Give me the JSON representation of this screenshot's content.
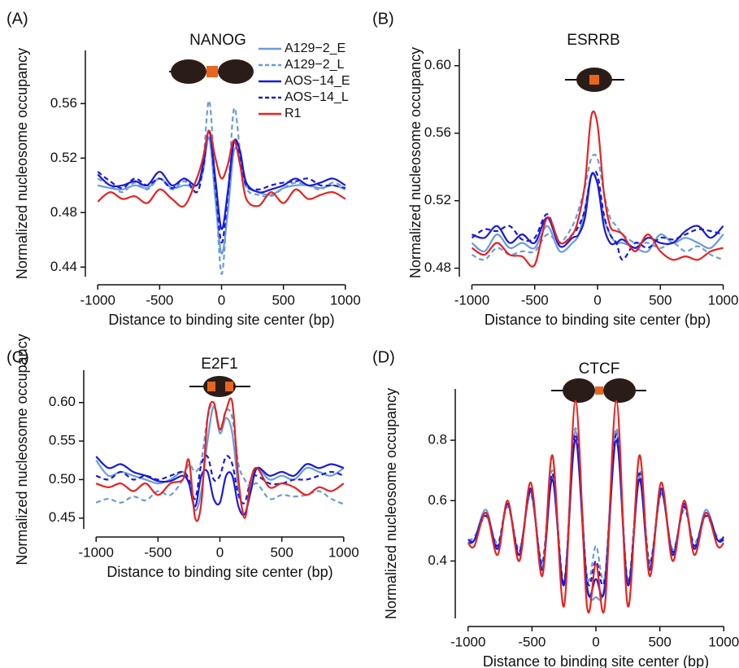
{
  "chart_data": [
    {
      "type": "line",
      "label": "(A)",
      "title": "NANOG",
      "xlabel": "Distance to binding site center (bp)",
      "ylabel": "Normalized nucleosome occupancy",
      "legend": true,
      "x": [
        -1000,
        -900,
        -800,
        -700,
        -600,
        -500,
        -400,
        -300,
        -200,
        -150,
        -100,
        -50,
        0,
        50,
        100,
        150,
        200,
        300,
        400,
        500,
        600,
        700,
        800,
        900,
        1000
      ],
      "xlim": [
        -1100,
        1100
      ],
      "xticks": [
        -1000,
        -500,
        0,
        500,
        1000
      ],
      "ylim": [
        0.433,
        0.599
      ],
      "yticks": [
        0.44,
        0.48,
        0.52,
        0.56
      ],
      "series": [
        {
          "name": "A129−2_E",
          "color": "#6a9be0",
          "dashed": false,
          "values": [
            0.5,
            0.498,
            0.497,
            0.5,
            0.498,
            0.505,
            0.498,
            0.5,
            0.5,
            0.51,
            0.535,
            0.49,
            0.45,
            0.48,
            0.525,
            0.52,
            0.5,
            0.495,
            0.493,
            0.498,
            0.5,
            0.5,
            0.498,
            0.5,
            0.497
          ]
        },
        {
          "name": "A129−2_L",
          "color": "#6a9be0",
          "dashed": true,
          "values": [
            0.505,
            0.5,
            0.495,
            0.502,
            0.497,
            0.505,
            0.497,
            0.503,
            0.495,
            0.515,
            0.562,
            0.5,
            0.435,
            0.49,
            0.556,
            0.525,
            0.498,
            0.493,
            0.492,
            0.498,
            0.502,
            0.5,
            0.497,
            0.502,
            0.498
          ]
        },
        {
          "name": "AOS−14_E",
          "color": "#1a1adb",
          "dashed": false,
          "values": [
            0.508,
            0.5,
            0.5,
            0.503,
            0.5,
            0.51,
            0.5,
            0.505,
            0.5,
            0.515,
            0.54,
            0.505,
            0.468,
            0.495,
            0.532,
            0.525,
            0.502,
            0.495,
            0.497,
            0.5,
            0.505,
            0.5,
            0.502,
            0.505,
            0.5
          ]
        },
        {
          "name": "AOS−14_L",
          "color": "#1a1adb",
          "dashed": true,
          "values": [
            0.51,
            0.503,
            0.498,
            0.505,
            0.5,
            0.505,
            0.498,
            0.505,
            0.495,
            0.512,
            0.54,
            0.5,
            0.458,
            0.492,
            0.532,
            0.52,
            0.5,
            0.497,
            0.5,
            0.502,
            0.503,
            0.505,
            0.5,
            0.5,
            0.498
          ]
        },
        {
          "name": "R1",
          "color": "#e8231f",
          "dashed": false,
          "values": [
            0.488,
            0.495,
            0.49,
            0.492,
            0.487,
            0.497,
            0.49,
            0.485,
            0.505,
            0.52,
            0.54,
            0.52,
            0.505,
            0.515,
            0.533,
            0.515,
            0.49,
            0.485,
            0.495,
            0.487,
            0.497,
            0.49,
            0.493,
            0.495,
            0.49
          ]
        }
      ]
    },
    {
      "type": "line",
      "label": "(B)",
      "title": "ESRRB",
      "xlabel": "Distance to binding site center (bp)",
      "ylabel": "Normalized nucleosome occupancy",
      "x": [
        -1000,
        -900,
        -800,
        -700,
        -600,
        -500,
        -400,
        -300,
        -200,
        -150,
        -100,
        -50,
        0,
        50,
        100,
        150,
        200,
        300,
        400,
        500,
        600,
        700,
        800,
        900,
        1000
      ],
      "xlim": [
        -1100,
        1100
      ],
      "xticks": [
        -1000,
        -500,
        0,
        500,
        1000
      ],
      "ylim": [
        0.475,
        0.61
      ],
      "yticks": [
        0.48,
        0.52,
        0.56,
        {
          "value": 0.6,
          "label": "0.60"
        }
      ],
      "series": [
        {
          "color": "#6a9be0",
          "dashed": false,
          "values": [
            0.495,
            0.49,
            0.5,
            0.492,
            0.495,
            0.492,
            0.505,
            0.49,
            0.495,
            0.5,
            0.515,
            0.535,
            0.53,
            0.51,
            0.5,
            0.495,
            0.495,
            0.492,
            0.49,
            0.5,
            0.495,
            0.498,
            0.495,
            0.492,
            0.5
          ]
        },
        {
          "color": "#6a9be0",
          "dashed": true,
          "values": [
            0.488,
            0.485,
            0.492,
            0.488,
            0.49,
            0.49,
            0.5,
            0.495,
            0.505,
            0.515,
            0.528,
            0.545,
            0.545,
            0.525,
            0.51,
            0.505,
            0.5,
            0.495,
            0.495,
            0.492,
            0.495,
            0.49,
            0.493,
            0.488,
            0.485
          ]
        },
        {
          "color": "#1a1adb",
          "dashed": false,
          "values": [
            0.5,
            0.498,
            0.505,
            0.495,
            0.5,
            0.495,
            0.51,
            0.493,
            0.498,
            0.5,
            0.51,
            0.535,
            0.53,
            0.505,
            0.495,
            0.495,
            0.497,
            0.492,
            0.498,
            0.495,
            0.495,
            0.502,
            0.505,
            0.498,
            0.505
          ]
        },
        {
          "color": "#1a1adb",
          "dashed": true,
          "values": [
            0.498,
            0.503,
            0.502,
            0.505,
            0.497,
            0.498,
            0.512,
            0.495,
            0.5,
            0.505,
            0.515,
            0.535,
            0.535,
            0.512,
            0.5,
            0.495,
            0.485,
            0.495,
            0.492,
            0.498,
            0.497,
            0.5,
            0.503,
            0.502,
            0.5
          ]
        },
        {
          "color": "#e8231f",
          "dashed": false,
          "values": [
            0.492,
            0.488,
            0.495,
            0.488,
            0.487,
            0.482,
            0.51,
            0.495,
            0.5,
            0.51,
            0.53,
            0.57,
            0.565,
            0.525,
            0.505,
            0.502,
            0.5,
            0.49,
            0.5,
            0.49,
            0.485,
            0.487,
            0.485,
            0.49,
            0.492
          ]
        }
      ]
    },
    {
      "type": "line",
      "label": "(C)",
      "title": "E2F1",
      "xlabel": "Distance to binding site center (bp)",
      "ylabel": "Normalized nucleosome occupancy",
      "x": [
        -1000,
        -900,
        -800,
        -700,
        -600,
        -500,
        -400,
        -300,
        -250,
        -200,
        -150,
        -100,
        -50,
        0,
        50,
        100,
        150,
        200,
        250,
        300,
        400,
        500,
        600,
        700,
        800,
        900,
        1000
      ],
      "xlim": [
        -1100,
        1100
      ],
      "xticks": [
        -1000,
        -500,
        0,
        500,
        1000
      ],
      "ylim": [
        0.436,
        0.642
      ],
      "yticks": [
        0.45,
        {
          "value": 0.5,
          "label": "0.50"
        },
        0.55,
        {
          "value": 0.6,
          "label": "0.60"
        }
      ],
      "series": [
        {
          "color": "#6a9be0",
          "dashed": false,
          "values": [
            0.525,
            0.505,
            0.51,
            0.505,
            0.5,
            0.495,
            0.5,
            0.51,
            0.495,
            0.46,
            0.485,
            0.55,
            0.595,
            0.56,
            0.58,
            0.56,
            0.49,
            0.455,
            0.49,
            0.515,
            0.5,
            0.505,
            0.5,
            0.515,
            0.51,
            0.505,
            0.515
          ]
        },
        {
          "color": "#6a9be0",
          "dashed": true,
          "values": [
            0.47,
            0.475,
            0.47,
            0.478,
            0.473,
            0.485,
            0.48,
            0.5,
            0.52,
            0.51,
            0.525,
            0.58,
            0.6,
            0.565,
            0.59,
            0.58,
            0.52,
            0.5,
            0.49,
            0.495,
            0.475,
            0.48,
            0.478,
            0.48,
            0.485,
            0.475,
            0.468
          ]
        },
        {
          "color": "#1a1adb",
          "dashed": false,
          "values": [
            0.53,
            0.515,
            0.52,
            0.51,
            0.505,
            0.498,
            0.498,
            0.505,
            0.495,
            0.465,
            0.505,
            0.51,
            0.475,
            0.47,
            0.505,
            0.505,
            0.465,
            0.455,
            0.485,
            0.515,
            0.505,
            0.51,
            0.505,
            0.52,
            0.515,
            0.52,
            0.515
          ]
        },
        {
          "color": "#1a1adb",
          "dashed": true,
          "values": [
            0.505,
            0.5,
            0.51,
            0.5,
            0.505,
            0.5,
            0.505,
            0.51,
            0.5,
            0.475,
            0.52,
            0.53,
            0.5,
            0.505,
            0.53,
            0.52,
            0.48,
            0.47,
            0.5,
            0.505,
            0.495,
            0.495,
            0.5,
            0.5,
            0.505,
            0.51,
            0.505
          ]
        },
        {
          "color": "#e8231f",
          "dashed": false,
          "values": [
            0.495,
            0.49,
            0.495,
            0.485,
            0.495,
            0.48,
            0.495,
            0.5,
            0.525,
            0.45,
            0.47,
            0.58,
            0.6,
            0.565,
            0.59,
            0.6,
            0.5,
            0.45,
            0.5,
            0.515,
            0.49,
            0.495,
            0.49,
            0.48,
            0.49,
            0.485,
            0.495
          ]
        }
      ]
    },
    {
      "type": "line",
      "label": "(D)",
      "title": "CTCF",
      "xlabel": "Distance to binding site center (bp)",
      "ylabel": "Normalized nucleosome occupancy",
      "x": [
        -1000,
        -950,
        -860,
        -770,
        -690,
        -600,
        -510,
        -420,
        -340,
        -250,
        -160,
        -70,
        0,
        70,
        160,
        250,
        340,
        420,
        510,
        600,
        690,
        770,
        860,
        950,
        1000
      ],
      "xlim": [
        -1100,
        1100
      ],
      "xticks": [
        -1000,
        -500,
        0,
        500,
        1000
      ],
      "ylim": [
        0.21,
        0.97
      ],
      "yticks": [
        0.4,
        0.6,
        0.8
      ],
      "series": [
        {
          "color": "#6a9be0",
          "dashed": false,
          "values": [
            0.47,
            0.47,
            0.57,
            0.44,
            0.59,
            0.42,
            0.63,
            0.38,
            0.68,
            0.32,
            0.83,
            0.33,
            0.28,
            0.33,
            0.83,
            0.32,
            0.68,
            0.38,
            0.63,
            0.42,
            0.59,
            0.44,
            0.57,
            0.47,
            0.47
          ]
        },
        {
          "color": "#6a9be0",
          "dashed": true,
          "values": [
            0.47,
            0.48,
            0.55,
            0.46,
            0.58,
            0.44,
            0.62,
            0.4,
            0.7,
            0.33,
            0.84,
            0.35,
            0.45,
            0.35,
            0.84,
            0.33,
            0.7,
            0.4,
            0.62,
            0.44,
            0.57,
            0.46,
            0.55,
            0.48,
            0.47
          ]
        },
        {
          "color": "#1a1adb",
          "dashed": false,
          "values": [
            0.46,
            0.47,
            0.56,
            0.44,
            0.59,
            0.42,
            0.64,
            0.37,
            0.67,
            0.32,
            0.8,
            0.31,
            0.34,
            0.31,
            0.8,
            0.32,
            0.67,
            0.37,
            0.64,
            0.42,
            0.59,
            0.44,
            0.56,
            0.47,
            0.48
          ]
        },
        {
          "color": "#1a1adb",
          "dashed": true,
          "values": [
            0.47,
            0.47,
            0.55,
            0.45,
            0.59,
            0.43,
            0.63,
            0.39,
            0.69,
            0.33,
            0.82,
            0.34,
            0.4,
            0.34,
            0.82,
            0.33,
            0.69,
            0.39,
            0.63,
            0.43,
            0.58,
            0.45,
            0.55,
            0.47,
            0.47
          ]
        },
        {
          "color": "#e8231f",
          "dashed": false,
          "values": [
            0.46,
            0.45,
            0.56,
            0.42,
            0.6,
            0.4,
            0.66,
            0.35,
            0.75,
            0.25,
            0.93,
            0.25,
            0.39,
            0.25,
            0.93,
            0.25,
            0.75,
            0.35,
            0.66,
            0.4,
            0.6,
            0.42,
            0.56,
            0.45,
            0.46
          ]
        }
      ]
    }
  ]
}
